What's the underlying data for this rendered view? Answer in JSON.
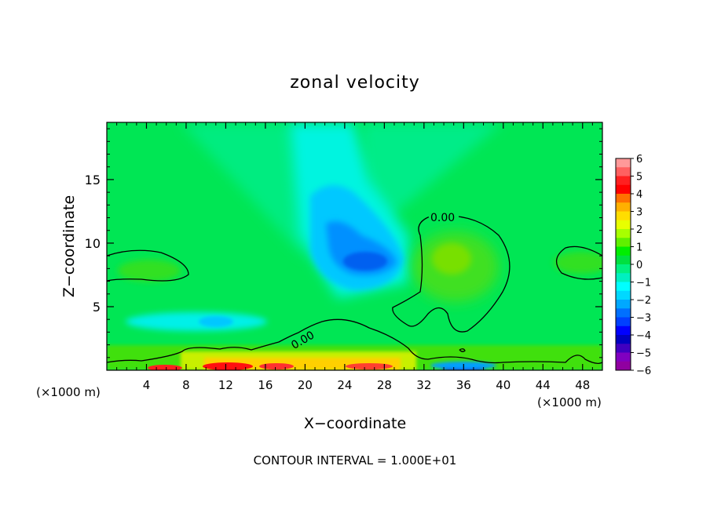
{
  "chart_data": {
    "type": "heatmap",
    "title": "zonal velocity",
    "xlabel": "X−coordinate",
    "ylabel": "Z−coordinate",
    "x_unit": "(×1000 m)",
    "x_unit_right": "(×1000 m)",
    "xlim": [
      0,
      50
    ],
    "ylim": [
      0,
      19.5
    ],
    "x_ticks": [
      4,
      8,
      12,
      16,
      20,
      24,
      28,
      32,
      36,
      40,
      44,
      48
    ],
    "y_ticks": [
      5,
      10,
      15
    ],
    "colorbar": {
      "levels": [
        6,
        5,
        4,
        3,
        2,
        1,
        0,
        -1,
        -2,
        -3,
        -4,
        -5,
        -6
      ],
      "colors": [
        "#ff9999",
        "#ff6060",
        "#ff2020",
        "#ff0000",
        "#ff7000",
        "#ffb000",
        "#ffdd00",
        "#e8ff00",
        "#a8ff00",
        "#60f000",
        "#00ee00",
        "#00e040",
        "#00f080",
        "#00f0c0",
        "#00ffff",
        "#00d8ff",
        "#00a8ff",
        "#0070ff",
        "#0040ff",
        "#0000ff",
        "#0000c0",
        "#4000c0",
        "#8000c0",
        "#9000a0"
      ]
    },
    "contour_labels": [
      "0.00",
      "0.00"
    ],
    "footer": "CONTOUR INTERVAL = 1.000E+01",
    "grid": false
  }
}
